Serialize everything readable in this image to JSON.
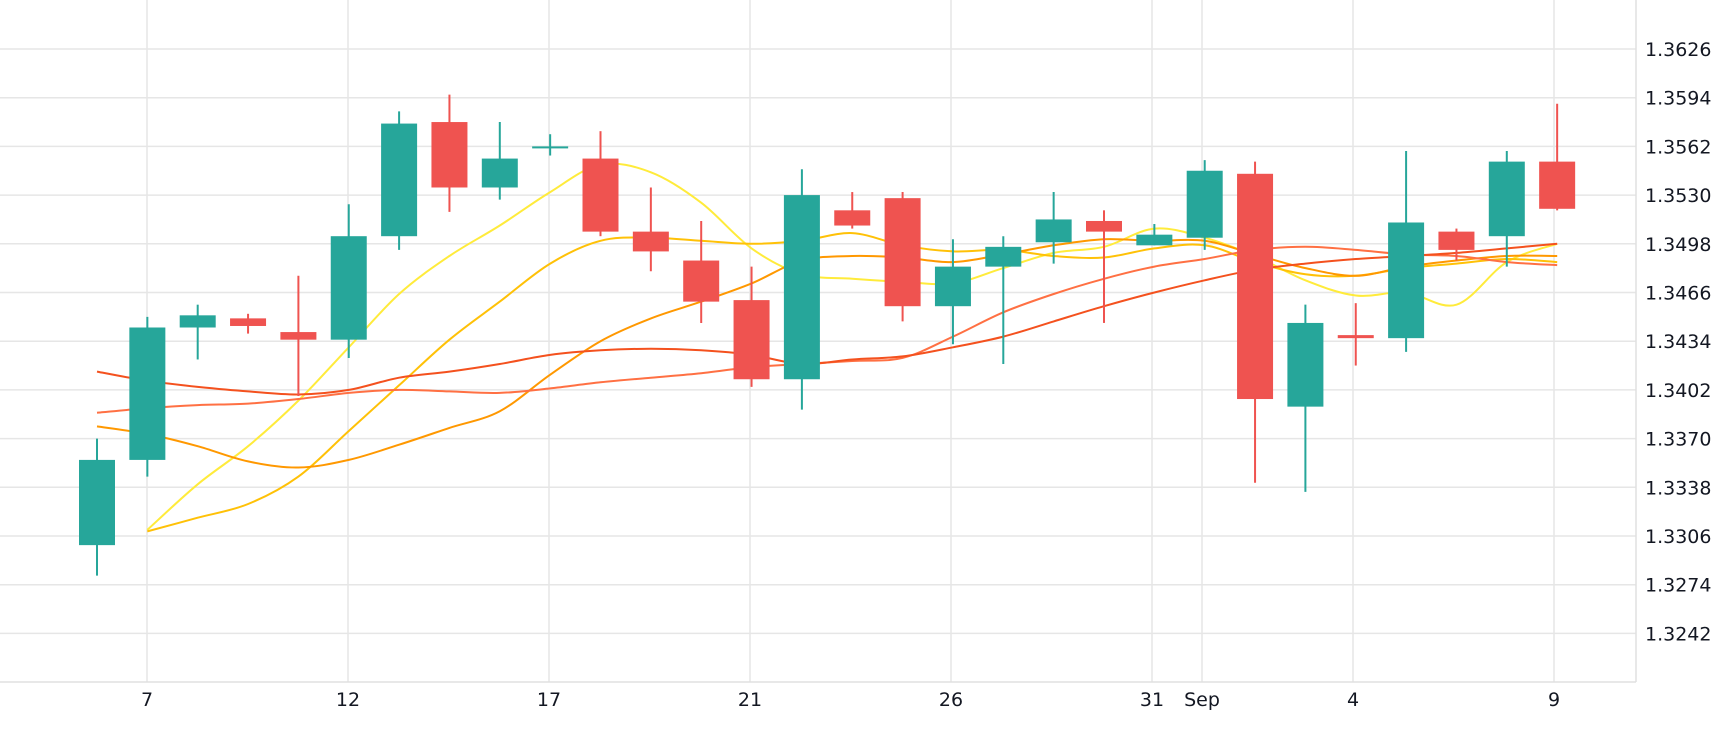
{
  "chart_data": {
    "type": "candlestick",
    "title": "",
    "xlabel": "",
    "ylabel": "",
    "x_ticks": [
      "7",
      "12",
      "17",
      "21",
      "26",
      "31",
      "Sep",
      "4",
      "9"
    ],
    "y_ticks": [
      "1.3626",
      "1.3594",
      "1.3562",
      "1.3530",
      "1.3498",
      "1.3466",
      "1.3434",
      "1.3402",
      "1.3370",
      "1.3338",
      "1.3306",
      "1.3274",
      "1.3242"
    ],
    "ylim": [
      1.321,
      1.3658
    ],
    "grid": true,
    "up_color": "#26a69a",
    "down_color": "#ef5350",
    "candles": [
      {
        "date": "Aug 6",
        "open": 1.33,
        "high": 1.337,
        "low": 1.328,
        "close": 1.3356
      },
      {
        "date": "Aug 7",
        "open": 1.3356,
        "high": 1.345,
        "low": 1.3345,
        "close": 1.3443
      },
      {
        "date": "Aug 8",
        "open": 1.3443,
        "high": 1.3458,
        "low": 1.3422,
        "close": 1.3451
      },
      {
        "date": "Aug 9",
        "open": 1.3449,
        "high": 1.3452,
        "low": 1.3439,
        "close": 1.3444
      },
      {
        "date": "Aug 11",
        "open": 1.344,
        "high": 1.3477,
        "low": 1.3398,
        "close": 1.3435
      },
      {
        "date": "Aug 12",
        "open": 1.3435,
        "high": 1.3524,
        "low": 1.3423,
        "close": 1.3503
      },
      {
        "date": "Aug 13",
        "open": 1.3503,
        "high": 1.3585,
        "low": 1.3494,
        "close": 1.3577
      },
      {
        "date": "Aug 14",
        "open": 1.3578,
        "high": 1.3596,
        "low": 1.3519,
        "close": 1.3535
      },
      {
        "date": "Aug 15",
        "open": 1.3535,
        "high": 1.3578,
        "low": 1.3527,
        "close": 1.3554
      },
      {
        "date": "Aug 17",
        "open": 1.3561,
        "high": 1.357,
        "low": 1.3556,
        "close": 1.3562
      },
      {
        "date": "Aug 18",
        "open": 1.3554,
        "high": 1.3572,
        "low": 1.3503,
        "close": 1.3506
      },
      {
        "date": "Aug 19",
        "open": 1.3506,
        "high": 1.3535,
        "low": 1.348,
        "close": 1.3493
      },
      {
        "date": "Aug 20",
        "open": 1.3487,
        "high": 1.3513,
        "low": 1.3446,
        "close": 1.346
      },
      {
        "date": "Aug 21",
        "open": 1.3461,
        "high": 1.3483,
        "low": 1.3404,
        "close": 1.3409
      },
      {
        "date": "Aug 22",
        "open": 1.3409,
        "high": 1.3547,
        "low": 1.3389,
        "close": 1.353
      },
      {
        "date": "Aug 23",
        "open": 1.352,
        "high": 1.3532,
        "low": 1.3508,
        "close": 1.351
      },
      {
        "date": "Aug 24",
        "open": 1.3528,
        "high": 1.3532,
        "low": 1.3447,
        "close": 1.3457
      },
      {
        "date": "Aug 26",
        "open": 1.3457,
        "high": 1.3501,
        "low": 1.3432,
        "close": 1.3483
      },
      {
        "date": "Aug 27",
        "open": 1.3483,
        "high": 1.3503,
        "low": 1.3419,
        "close": 1.3496
      },
      {
        "date": "Aug 28",
        "open": 1.3499,
        "high": 1.3532,
        "low": 1.3485,
        "close": 1.3514
      },
      {
        "date": "Aug 30",
        "open": 1.3513,
        "high": 1.352,
        "low": 1.3446,
        "close": 1.3506
      },
      {
        "date": "Aug 31",
        "open": 1.3497,
        "high": 1.3511,
        "low": 1.3497,
        "close": 1.3504
      },
      {
        "date": "Sep 1",
        "open": 1.3502,
        "high": 1.3553,
        "low": 1.3494,
        "close": 1.3546
      },
      {
        "date": "Sep 2",
        "open": 1.3544,
        "high": 1.3552,
        "low": 1.3341,
        "close": 1.3396
      },
      {
        "date": "Sep 3",
        "open": 1.3391,
        "high": 1.3458,
        "low": 1.3335,
        "close": 1.3446
      },
      {
        "date": "Sep 4",
        "open": 1.3438,
        "high": 1.3459,
        "low": 1.3418,
        "close": 1.3436
      },
      {
        "date": "Sep 5",
        "open": 1.3436,
        "high": 1.3559,
        "low": 1.3427,
        "close": 1.3512
      },
      {
        "date": "Sep 6",
        "open": 1.3506,
        "high": 1.3508,
        "low": 1.3487,
        "close": 1.3494
      },
      {
        "date": "Sep 7",
        "open": 1.3503,
        "high": 1.3559,
        "low": 1.3483,
        "close": 1.3552
      },
      {
        "date": "Sep 9",
        "open": 1.3552,
        "high": 1.359,
        "low": 1.352,
        "close": 1.3521
      }
    ],
    "series": [
      {
        "color": "#ffeb3b",
        "values": [
          null,
          1.331,
          1.334,
          1.3365,
          1.3395,
          1.343,
          1.3465,
          1.349,
          1.351,
          1.3532,
          1.355,
          1.3545,
          1.3525,
          1.3495,
          1.3478,
          1.3475,
          1.3473,
          1.3472,
          1.3482,
          1.3492,
          1.3496,
          1.3508,
          1.3502,
          1.349,
          1.3474,
          1.3464,
          1.3466,
          1.3458,
          1.3486,
          1.3498
        ]
      },
      {
        "color": "#ffc107",
        "values": [
          null,
          1.3309,
          1.3318,
          1.3327,
          1.3345,
          1.3375,
          1.3405,
          1.3435,
          1.346,
          1.3485,
          1.35,
          1.3502,
          1.35,
          1.3498,
          1.35,
          1.3505,
          1.3497,
          1.3493,
          1.3494,
          1.349,
          1.3489,
          1.3495,
          1.3497,
          1.3486,
          1.3478,
          1.3477,
          1.3482,
          1.3485,
          1.3488,
          1.3486
        ]
      },
      {
        "color": "#ff9800",
        "values": [
          1.3378,
          1.3373,
          1.3365,
          1.3355,
          1.3351,
          1.3356,
          1.3366,
          1.3377,
          1.3388,
          1.3412,
          1.3434,
          1.3449,
          1.346,
          1.3472,
          1.3487,
          1.349,
          1.3489,
          1.3486,
          1.3491,
          1.3497,
          1.3501,
          1.35,
          1.35,
          1.3491,
          1.3482,
          1.3477,
          1.3483,
          1.3487,
          1.349,
          1.349
        ]
      },
      {
        "color": "#ff7043",
        "values": [
          1.3387,
          1.339,
          1.3392,
          1.3393,
          1.3396,
          1.34,
          1.3402,
          1.3401,
          1.34,
          1.3403,
          1.3407,
          1.341,
          1.3413,
          1.3417,
          1.3419,
          1.3421,
          1.3423,
          1.3437,
          1.3453,
          1.3465,
          1.3475,
          1.3483,
          1.3488,
          1.3494,
          1.3496,
          1.3494,
          1.3491,
          1.349,
          1.3486,
          1.3484
        ]
      },
      {
        "color": "#f4511e",
        "values": [
          1.3414,
          1.3408,
          1.3404,
          1.3401,
          1.3399,
          1.3402,
          1.341,
          1.3414,
          1.3419,
          1.3425,
          1.3428,
          1.3429,
          1.3428,
          1.3425,
          1.3419,
          1.3422,
          1.3424,
          1.343,
          1.3437,
          1.3447,
          1.3457,
          1.3466,
          1.3474,
          1.3481,
          1.3485,
          1.3488,
          1.349,
          1.3492,
          1.3495,
          1.3498
        ]
      }
    ]
  }
}
